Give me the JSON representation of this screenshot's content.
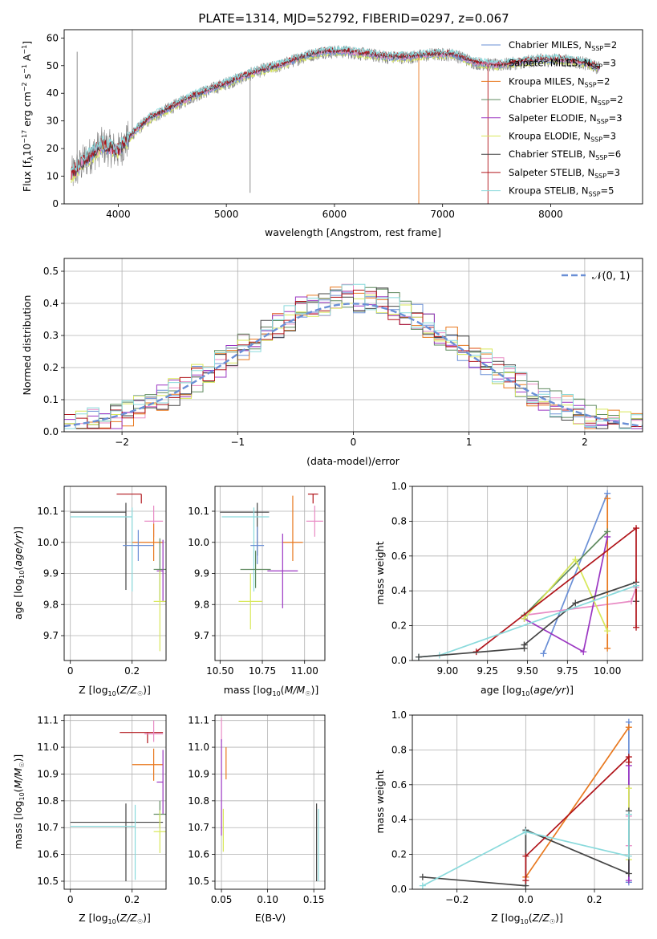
{
  "figure_title": "PLATE=1314, MJD=52792, FIBERID=0297, z=0.067",
  "colors": {
    "Chabrier MILES": "#6a8fd6",
    "Salpeter MILES": "#e88ac4",
    "Kroupa MILES": "#e8781e",
    "Chabrier ELODIE": "#5f8a5f",
    "Salpeter ELODIE": "#9b36c2",
    "Kroupa ELODIE": "#d8e85a",
    "Chabrier STELIB": "#444444",
    "Salpeter STELIB": "#b0141a",
    "Kroupa STELIB": "#8adadc",
    "data": "#808080",
    "normal": "#6a8fd6"
  },
  "chart_data": [
    {
      "id": "spectrum",
      "type": "line",
      "title": "PLATE=1314, MJD=52792, FIBERID=0297, z=0.067",
      "xlabel": "wavelength [Angstrom, rest frame]",
      "ylabel": "Flux [f_λ10^-17 erg cm^-2 s^-1 A^-1]",
      "xlim": [
        3500,
        8850
      ],
      "ylim": [
        0,
        63
      ],
      "xticks": [
        4000,
        5000,
        6000,
        7000,
        8000
      ],
      "yticks": [
        0,
        10,
        20,
        30,
        40,
        50,
        60
      ],
      "legend_position": "right",
      "legend": [
        {
          "name": "Chabrier MILES",
          "nssp": "2"
        },
        {
          "name": "Salpeter MILES",
          "nssp": "3"
        },
        {
          "name": "Kroupa MILES",
          "nssp": "2"
        },
        {
          "name": "Chabrier ELODIE",
          "nssp": "2"
        },
        {
          "name": "Salpeter ELODIE",
          "nssp": "3"
        },
        {
          "name": "Kroupa ELODIE",
          "nssp": "3"
        },
        {
          "name": "Chabrier STELIB",
          "nssp": "6"
        },
        {
          "name": "Salpeter STELIB",
          "nssp": "3"
        },
        {
          "name": "Kroupa STELIB",
          "nssp": "5"
        }
      ],
      "continuum": {
        "x": [
          3560,
          3700,
          3850,
          4000,
          4150,
          4300,
          4500,
          4700,
          4900,
          5100,
          5300,
          5500,
          5700,
          5900,
          6100,
          6300,
          6500,
          6700,
          6900,
          7100,
          7300,
          7500,
          7700,
          7900,
          8100,
          8300,
          8450
        ],
        "y": [
          10,
          16,
          21,
          19,
          26,
          31,
          35,
          39,
          42,
          45,
          48,
          50,
          53,
          55,
          55,
          54,
          53,
          53,
          54,
          54,
          51,
          50,
          51,
          52,
          52,
          51,
          49
        ]
      }
    },
    {
      "id": "residuals",
      "type": "histogram",
      "xlabel": "(data-model)/error",
      "ylabel": "Normed distribution",
      "xlim": [
        -2.5,
        2.5
      ],
      "ylim": [
        0,
        0.54
      ],
      "xticks": [
        -2,
        -1,
        0,
        1,
        2
      ],
      "yticks": [
        0.0,
        0.1,
        0.2,
        0.3,
        0.4,
        0.5
      ],
      "grid": true,
      "legend_position": "top-right",
      "normal_label": "𝒩(0, 1)",
      "bin_width": 0.1
    },
    {
      "id": "age-vs-Z",
      "type": "errorbar",
      "xlabel": "Z [log10(Z/Z☉)]",
      "ylabel": "age [log10(age/yr)]",
      "xlim": [
        -0.02,
        0.31
      ],
      "ylim": [
        9.62,
        10.18
      ],
      "xticks": [
        0.0,
        0.2
      ],
      "yticks": [
        9.7,
        9.8,
        9.9,
        10.0,
        10.1
      ],
      "grid": true,
      "points": [
        {
          "series": "Salpeter STELIB",
          "x": 0.23,
          "y": 10.155,
          "xerr": [
            0.08,
            0.0
          ],
          "yerr": [
            0.03,
            0.0
          ]
        },
        {
          "series": "Chabrier STELIB",
          "x": 0.18,
          "y": 10.097,
          "xerr": [
            0.18,
            0.0
          ],
          "yerr": [
            0.25,
            0.03
          ]
        },
        {
          "series": "Kroupa STELIB",
          "x": 0.2,
          "y": 10.082,
          "xerr": [
            0.2,
            0.0
          ],
          "yerr": [
            0.24,
            0.03
          ]
        },
        {
          "series": "Salpeter MILES",
          "x": 0.27,
          "y": 10.068,
          "xerr": [
            0.03,
            0.03
          ],
          "yerr": [
            0.05,
            0.05
          ]
        },
        {
          "series": "Kroupa MILES",
          "x": 0.27,
          "y": 10.0,
          "xerr": [
            0.07,
            0.03
          ],
          "yerr": [
            0.06,
            0.06
          ]
        },
        {
          "series": "Chabrier MILES",
          "x": 0.22,
          "y": 9.99,
          "xerr": [
            0.05,
            0.05
          ],
          "yerr": [
            0.05,
            0.05
          ]
        },
        {
          "series": "Chabrier ELODIE",
          "x": 0.29,
          "y": 9.913,
          "xerr": [
            0.02,
            0.02
          ],
          "yerr": [
            0.1,
            0.1
          ]
        },
        {
          "series": "Salpeter ELODIE",
          "x": 0.3,
          "y": 9.908,
          "xerr": [
            0.02,
            0.0
          ],
          "yerr": [
            0.1,
            0.1
          ]
        },
        {
          "series": "Kroupa ELODIE",
          "x": 0.29,
          "y": 9.81,
          "xerr": [
            0.02,
            0.02
          ],
          "yerr": [
            0.16,
            0.1
          ]
        }
      ]
    },
    {
      "id": "age-vs-mass",
      "type": "errorbar",
      "xlabel": "mass [log10(M/M☉)]",
      "ylabel": "",
      "xlim": [
        10.47,
        11.12
      ],
      "ylim": [
        9.62,
        10.18
      ],
      "xticks": [
        10.5,
        10.75,
        11.0
      ],
      "xticklabels": [
        "10.50",
        "10.75",
        "11.00"
      ],
      "yticks": [
        9.7,
        9.8,
        9.9,
        10.0,
        10.1
      ],
      "grid": true,
      "points": [
        {
          "series": "Salpeter STELIB",
          "x": 11.05,
          "y": 10.155,
          "xerr": [
            0.03,
            0.03
          ],
          "yerr": [
            0.03,
            0.0
          ]
        },
        {
          "series": "Chabrier STELIB",
          "x": 10.72,
          "y": 10.097,
          "xerr": [
            0.22,
            0.07
          ],
          "yerr": [
            0.14,
            0.03
          ]
        },
        {
          "series": "Kroupa STELIB",
          "x": 10.7,
          "y": 10.082,
          "xerr": [
            0.19,
            0.09
          ],
          "yerr": [
            0.24,
            0.03
          ]
        },
        {
          "series": "Salpeter MILES",
          "x": 11.06,
          "y": 10.068,
          "xerr": [
            0.05,
            0.05
          ],
          "yerr": [
            0.05,
            0.05
          ]
        },
        {
          "series": "Kroupa MILES",
          "x": 10.93,
          "y": 10.0,
          "xerr": [
            0.06,
            0.06
          ],
          "yerr": [
            0.06,
            0.15
          ]
        },
        {
          "series": "Chabrier MILES",
          "x": 10.72,
          "y": 9.99,
          "xerr": [
            0.04,
            0.04
          ],
          "yerr": [
            0.06,
            0.06
          ]
        },
        {
          "series": "Chabrier ELODIE",
          "x": 10.71,
          "y": 9.913,
          "xerr": [
            0.09,
            0.09
          ],
          "yerr": [
            0.06,
            0.06
          ]
        },
        {
          "series": "Salpeter ELODIE",
          "x": 10.87,
          "y": 9.908,
          "xerr": [
            0.09,
            0.09
          ],
          "yerr": [
            0.12,
            0.12
          ]
        },
        {
          "series": "Kroupa ELODIE",
          "x": 10.68,
          "y": 9.81,
          "xerr": [
            0.07,
            0.07
          ],
          "yerr": [
            0.09,
            0.09
          ]
        }
      ]
    },
    {
      "id": "weight-vs-age",
      "type": "line",
      "xlabel": "age [log10(age/yr)]",
      "ylabel": "mass weight",
      "xlim": [
        8.78,
        10.22
      ],
      "ylim": [
        0,
        1.0
      ],
      "xticks": [
        9.0,
        9.25,
        9.5,
        9.75,
        10.0
      ],
      "xticklabels": [
        "9.00",
        "9.25",
        "9.50",
        "9.75",
        "10.00"
      ],
      "yticks": [
        0.0,
        0.2,
        0.4,
        0.6,
        0.8,
        1.0
      ],
      "grid": true,
      "series": [
        {
          "name": "Chabrier MILES",
          "x": [
            9.6,
            10.0
          ],
          "y": [
            0.04,
            0.96
          ]
        },
        {
          "name": "Salpeter MILES",
          "x": [
            9.48,
            10.15,
            10.18
          ],
          "y": [
            0.26,
            0.34,
            0.42
          ]
        },
        {
          "name": "Kroupa MILES",
          "x": [
            10.0,
            10.0
          ],
          "y": [
            0.07,
            0.93
          ]
        },
        {
          "name": "Chabrier ELODIE",
          "x": [
            9.48,
            10.0
          ],
          "y": [
            0.26,
            0.74
          ]
        },
        {
          "name": "Salpeter ELODIE",
          "x": [
            9.48,
            9.85,
            10.0
          ],
          "y": [
            0.24,
            0.05,
            0.71
          ]
        },
        {
          "name": "Kroupa ELODIE",
          "x": [
            9.48,
            9.8,
            10.0
          ],
          "y": [
            0.24,
            0.58,
            0.17
          ]
        },
        {
          "name": "Chabrier STELIB",
          "x": [
            9.48,
            9.8,
            10.18,
            10.18
          ],
          "y": [
            0.09,
            0.33,
            0.45,
            0.34
          ]
        },
        {
          "name": "Salpeter STELIB",
          "x": [
            9.18,
            10.18,
            10.18
          ],
          "y": [
            0.05,
            0.76,
            0.19
          ]
        },
        {
          "name": "Kroupa STELIB",
          "x": [
            8.82,
            8.95,
            10.18
          ],
          "y": [
            0.02,
            0.03,
            0.43
          ]
        },
        {
          "name": "Chabrier STELIB",
          "x": [
            8.82,
            9.48,
            9.48
          ],
          "y": [
            0.02,
            0.07,
            0.09
          ]
        }
      ]
    },
    {
      "id": "mass-vs-Z",
      "type": "errorbar",
      "xlabel": "Z [log10(Z/Z☉)]",
      "ylabel": "mass [log10(M/M☉)]",
      "xlim": [
        -0.02,
        0.31
      ],
      "ylim": [
        10.47,
        11.12
      ],
      "xticks": [
        0.0,
        0.2
      ],
      "yticks": [
        10.5,
        10.6,
        10.7,
        10.8,
        10.9,
        11.0,
        11.1
      ],
      "grid": true,
      "points": [
        {
          "series": "Salpeter STELIB",
          "x": 0.25,
          "y": 11.055,
          "xerr": [
            0.09,
            0.05
          ],
          "yerr": [
            0.04,
            0.0
          ]
        },
        {
          "series": "Salpeter MILES",
          "x": 0.27,
          "y": 11.05,
          "xerr": [
            0.03,
            0.03
          ],
          "yerr": [
            0.03,
            0.05
          ]
        },
        {
          "series": "Kroupa MILES",
          "x": 0.27,
          "y": 10.935,
          "xerr": [
            0.07,
            0.03
          ],
          "yerr": [
            0.06,
            0.06
          ]
        },
        {
          "series": "Salpeter ELODIE",
          "x": 0.3,
          "y": 10.87,
          "xerr": [
            0.02,
            0.0
          ],
          "yerr": [
            0.12,
            0.12
          ]
        },
        {
          "series": "Chabrier ELODIE",
          "x": 0.29,
          "y": 10.75,
          "xerr": [
            0.02,
            0.02
          ],
          "yerr": [
            0.05,
            0.05
          ]
        },
        {
          "series": "Chabrier STELIB",
          "x": 0.18,
          "y": 10.72,
          "xerr": [
            0.18,
            0.12
          ],
          "yerr": [
            0.22,
            0.07
          ]
        },
        {
          "series": "Kroupa STELIB",
          "x": 0.21,
          "y": 10.705,
          "xerr": [
            0.21,
            0.0
          ],
          "yerr": [
            0.2,
            0.08
          ]
        },
        {
          "series": "Kroupa ELODIE",
          "x": 0.29,
          "y": 10.685,
          "xerr": [
            0.02,
            0.02
          ],
          "yerr": [
            0.08,
            0.08
          ]
        }
      ]
    },
    {
      "id": "mass-vs-EBV",
      "type": "errorbar",
      "xlabel": "E(B-V)",
      "ylabel": "",
      "xlim": [
        0.043,
        0.162
      ],
      "ylim": [
        10.47,
        11.12
      ],
      "xticks": [
        0.05,
        0.1,
        0.15
      ],
      "xticklabels": [
        "0.05",
        "0.10",
        "0.15"
      ],
      "yticks": [
        10.5,
        10.6,
        10.7,
        10.8,
        10.9,
        11.0,
        11.1
      ],
      "grid": true,
      "points": [
        {
          "series": "Salpeter MILES",
          "x": 0.05,
          "y": 11.06,
          "yerr": [
            0.04,
            0.05
          ]
        },
        {
          "series": "Kroupa MILES",
          "x": 0.055,
          "y": 10.94,
          "yerr": [
            0.06,
            0.06
          ]
        },
        {
          "series": "Salpeter ELODIE",
          "x": 0.05,
          "y": 10.85,
          "yerr": [
            0.18,
            0.18
          ]
        },
        {
          "series": "Kroupa ELODIE",
          "x": 0.052,
          "y": 10.69,
          "yerr": [
            0.08,
            0.08
          ]
        },
        {
          "series": "Chabrier STELIB",
          "x": 0.153,
          "y": 10.72,
          "yerr": [
            0.22,
            0.07
          ]
        },
        {
          "series": "Kroupa STELIB",
          "x": 0.155,
          "y": 10.7,
          "yerr": [
            0.2,
            0.07
          ]
        }
      ]
    },
    {
      "id": "weight-vs-Z",
      "type": "line",
      "xlabel": "Z [log10(Z/Z☉)]",
      "ylabel": "mass weight",
      "xlim": [
        -0.33,
        0.34
      ],
      "ylim": [
        0,
        1.0
      ],
      "xticks": [
        -0.2,
        0.0,
        0.2
      ],
      "xticklabels": [
        "−0.2",
        "0.0",
        "0.2"
      ],
      "yticks": [
        0.0,
        0.2,
        0.4,
        0.6,
        0.8,
        1.0
      ],
      "grid": true,
      "series": [
        {
          "name": "Chabrier MILES",
          "x": [
            0.3,
            0.3
          ],
          "y": [
            0.04,
            0.96
          ]
        },
        {
          "name": "Salpeter MILES",
          "x": [
            0.3,
            0.3
          ],
          "y": [
            0.25,
            0.42
          ]
        },
        {
          "name": "Kroupa MILES",
          "x": [
            0.0,
            0.3
          ],
          "y": [
            0.07,
            0.93
          ]
        },
        {
          "name": "Salpeter ELODIE",
          "x": [
            0.3,
            0.3
          ],
          "y": [
            0.05,
            0.71
          ]
        },
        {
          "name": "Kroupa ELODIE",
          "x": [
            0.3,
            0.3
          ],
          "y": [
            0.17,
            0.58
          ]
        },
        {
          "name": "Chabrier STELIB",
          "x": [
            -0.3,
            0.0,
            0.0,
            0.3,
            0.3
          ],
          "y": [
            0.07,
            0.02,
            0.34,
            0.09,
            0.45
          ]
        },
        {
          "name": "Salpeter STELIB",
          "x": [
            0.0,
            0.0,
            0.3,
            0.3
          ],
          "y": [
            0.05,
            0.19,
            0.76,
            0.73
          ]
        },
        {
          "name": "Kroupa STELIB",
          "x": [
            -0.3,
            0.0,
            0.3,
            0.3
          ],
          "y": [
            0.02,
            0.33,
            0.19,
            0.43
          ]
        }
      ]
    }
  ]
}
